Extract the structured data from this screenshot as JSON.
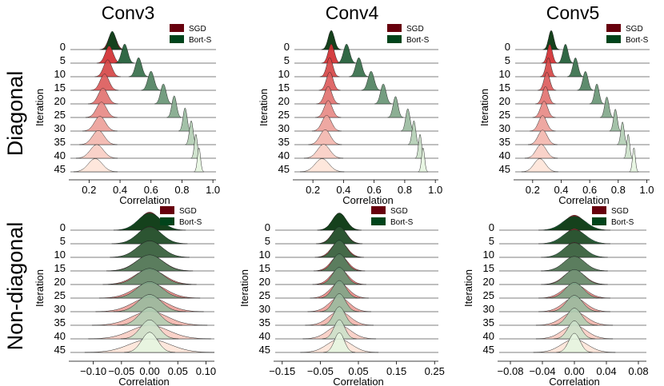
{
  "figure": {
    "column_titles": [
      "Conv3",
      "Conv4",
      "Conv5"
    ],
    "row_titles": [
      "Diagonal",
      "Non-diagonal"
    ]
  },
  "legend": {
    "entries": [
      {
        "label": "SGD",
        "color": "#67000d"
      },
      {
        "label": "Bort-S",
        "color": "#00441b"
      }
    ]
  },
  "colors": {
    "sgd_dark": "#67000d",
    "sgd_light": "#fee5d9",
    "bort_dark": "#00441b",
    "bort_light": "#e5f5e0",
    "baseline": "#555555"
  },
  "chart_data": [
    {
      "type": "ridgeline",
      "panel": "Diagonal / Conv3",
      "xlabel": "Correlation",
      "ylabel": "Iteration",
      "xlim": [
        0.1,
        1.02
      ],
      "xticks": [
        0.2,
        0.4,
        0.6,
        0.8,
        1.0
      ],
      "xtick_labels": [
        "0.2",
        "0.4",
        "0.6",
        "0.8",
        "1.0"
      ],
      "iterations": [
        "0",
        "5",
        "10",
        "15",
        "20",
        "25",
        "30",
        "35",
        "40",
        "45"
      ],
      "series": [
        {
          "name": "SGD",
          "peaks": [
            0.35,
            0.33,
            0.32,
            0.3,
            0.29,
            0.28,
            0.27,
            0.26,
            0.25,
            0.24
          ],
          "spread": [
            0.025,
            0.025,
            0.026,
            0.028,
            0.03,
            0.032,
            0.035,
            0.038,
            0.042,
            0.045
          ]
        },
        {
          "name": "Bort-S",
          "peaks": [
            0.35,
            0.43,
            0.52,
            0.6,
            0.68,
            0.75,
            0.82,
            0.86,
            0.89,
            0.91
          ],
          "spread": [
            0.022,
            0.02,
            0.02,
            0.02,
            0.018,
            0.015,
            0.013,
            0.012,
            0.01,
            0.01
          ]
        }
      ]
    },
    {
      "type": "ridgeline",
      "panel": "Diagonal / Conv4",
      "xlabel": "Correlation",
      "ylabel": "Iteration",
      "xlim": [
        0.1,
        1.02
      ],
      "xticks": [
        0.2,
        0.4,
        0.6,
        0.8,
        1.0
      ],
      "xtick_labels": [
        "0.2",
        "0.4",
        "0.6",
        "0.8",
        "1.0"
      ],
      "iterations": [
        "0",
        "5",
        "10",
        "15",
        "20",
        "25",
        "30",
        "35",
        "40",
        "45"
      ],
      "series": [
        {
          "name": "SGD",
          "peaks": [
            0.32,
            0.32,
            0.31,
            0.31,
            0.3,
            0.3,
            0.29,
            0.28,
            0.27,
            0.26
          ],
          "spread": [
            0.02,
            0.02,
            0.02,
            0.022,
            0.024,
            0.026,
            0.03,
            0.034,
            0.04,
            0.045
          ]
        },
        {
          "name": "Bort-S",
          "peaks": [
            0.32,
            0.42,
            0.5,
            0.58,
            0.66,
            0.74,
            0.82,
            0.86,
            0.9,
            0.92
          ],
          "spread": [
            0.02,
            0.02,
            0.02,
            0.02,
            0.018,
            0.016,
            0.014,
            0.012,
            0.01,
            0.01
          ]
        }
      ]
    },
    {
      "type": "ridgeline",
      "panel": "Diagonal / Conv5",
      "xlabel": "Correlation",
      "ylabel": "Iteration",
      "xlim": [
        0.1,
        1.02
      ],
      "xticks": [
        0.2,
        0.4,
        0.6,
        0.8,
        1.0
      ],
      "xtick_labels": [
        "0.2",
        "0.4",
        "0.6",
        "0.8",
        "1.0"
      ],
      "iterations": [
        "0",
        "5",
        "10",
        "15",
        "20",
        "25",
        "30",
        "35",
        "40",
        "45"
      ],
      "series": [
        {
          "name": "SGD",
          "peaks": [
            0.33,
            0.32,
            0.31,
            0.3,
            0.29,
            0.28,
            0.27,
            0.27,
            0.26,
            0.25
          ],
          "spread": [
            0.018,
            0.018,
            0.018,
            0.02,
            0.022,
            0.025,
            0.028,
            0.032,
            0.036,
            0.04
          ]
        },
        {
          "name": "Bort-S",
          "peaks": [
            0.33,
            0.43,
            0.5,
            0.57,
            0.65,
            0.72,
            0.78,
            0.83,
            0.87,
            0.91
          ],
          "spread": [
            0.018,
            0.018,
            0.018,
            0.018,
            0.016,
            0.015,
            0.013,
            0.012,
            0.01,
            0.01
          ]
        }
      ]
    },
    {
      "type": "ridgeline",
      "panel": "Non-diagonal / Conv3",
      "xlabel": "Correlation",
      "ylabel": "Iteration",
      "xlim": [
        -0.135,
        0.115
      ],
      "xticks": [
        -0.1,
        -0.05,
        0.0,
        0.05,
        0.1
      ],
      "xtick_labels": [
        "−0.10",
        "−0.05",
        "0.00",
        "0.05",
        "0.10"
      ],
      "iterations": [
        "0",
        "5",
        "10",
        "15",
        "20",
        "25",
        "30",
        "35",
        "40",
        "45"
      ],
      "series": [
        {
          "name": "SGD",
          "peaks": [
            0,
            0,
            0,
            0,
            0,
            0,
            0,
            0,
            0,
            0
          ],
          "spread": [
            0.018,
            0.02,
            0.022,
            0.024,
            0.026,
            0.028,
            0.03,
            0.032,
            0.034,
            0.036
          ]
        },
        {
          "name": "Bort-S",
          "peaks": [
            0,
            0,
            0,
            0,
            0,
            0,
            0,
            0,
            0,
            0
          ],
          "spread": [
            0.02,
            0.021,
            0.022,
            0.023,
            0.023,
            0.022,
            0.02,
            0.018,
            0.016,
            0.014
          ]
        }
      ]
    },
    {
      "type": "ridgeline",
      "panel": "Non-diagonal / Conv4",
      "xlabel": "Correlation",
      "ylabel": "Iteration",
      "xlim": [
        -0.16,
        0.26
      ],
      "xticks": [
        -0.15,
        -0.05,
        0.05,
        0.15,
        0.25
      ],
      "xtick_labels": [
        "−0.15",
        "−0.05",
        "0.05",
        "0.15",
        "0.25"
      ],
      "iterations": [
        "0",
        "5",
        "10",
        "15",
        "20",
        "25",
        "30",
        "35",
        "40",
        "45"
      ],
      "series": [
        {
          "name": "SGD",
          "peaks": [
            0,
            0,
            0,
            0,
            0,
            0,
            0,
            0,
            0,
            0
          ],
          "spread": [
            0.018,
            0.019,
            0.02,
            0.021,
            0.022,
            0.024,
            0.026,
            0.028,
            0.03,
            0.032
          ]
        },
        {
          "name": "Bort-S",
          "peaks": [
            0,
            0,
            0,
            0,
            0,
            0,
            0,
            0,
            0,
            0
          ],
          "spread": [
            0.018,
            0.018,
            0.018,
            0.018,
            0.018,
            0.017,
            0.016,
            0.015,
            0.014,
            0.013
          ]
        }
      ]
    },
    {
      "type": "ridgeline",
      "panel": "Non-diagonal / Conv5",
      "xlabel": "Correlation",
      "ylabel": "Iteration",
      "xlim": [
        -0.09,
        0.09
      ],
      "xticks": [
        -0.08,
        -0.04,
        0.0,
        0.04,
        0.08
      ],
      "xtick_labels": [
        "−0.08",
        "−0.04",
        "0.00",
        "0.04",
        "0.08"
      ],
      "iterations": [
        "0",
        "5",
        "10",
        "15",
        "20",
        "25",
        "30",
        "35",
        "40",
        "45"
      ],
      "series": [
        {
          "name": "SGD",
          "peaks": [
            0,
            0,
            0,
            0,
            0,
            0,
            0,
            0,
            0,
            0
          ],
          "spread": [
            0.012,
            0.012,
            0.012,
            0.013,
            0.013,
            0.014,
            0.014,
            0.015,
            0.015,
            0.016
          ]
        },
        {
          "name": "Bort-S",
          "peaks": [
            0,
            0,
            0,
            0,
            0,
            0,
            0,
            0,
            0,
            0
          ],
          "spread": [
            0.014,
            0.014,
            0.013,
            0.013,
            0.012,
            0.011,
            0.01,
            0.009,
            0.008,
            0.007
          ]
        }
      ]
    }
  ]
}
